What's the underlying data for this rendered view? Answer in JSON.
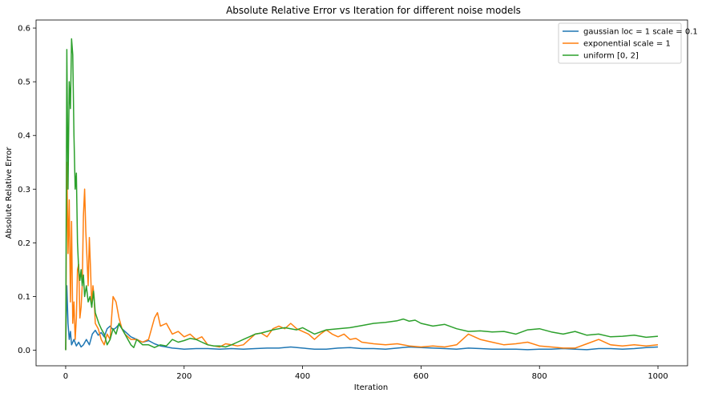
{
  "chart_data": {
    "type": "line",
    "title": "Absolute Relative Error vs Iteration for different noise models",
    "xlabel": "Iteration",
    "ylabel": "Absolute Relative Error",
    "xlim": [
      -50,
      1050
    ],
    "ylim": [
      -0.029,
      0.615
    ],
    "xticks": [
      0,
      200,
      400,
      600,
      800,
      1000
    ],
    "yticks": [
      0.0,
      0.1,
      0.2,
      0.3,
      0.4,
      0.5,
      0.6
    ],
    "ytick_labels": [
      "0.0",
      "0.1",
      "0.2",
      "0.3",
      "0.4",
      "0.5",
      "0.6"
    ],
    "grid": false,
    "legend_position": "top-right",
    "series": [
      {
        "name": "gaussian loc = 1 scale = 0.1",
        "color": "#1f77b4",
        "x": [
          0,
          2,
          4,
          6,
          8,
          10,
          14,
          18,
          22,
          26,
          30,
          35,
          40,
          45,
          50,
          55,
          60,
          65,
          70,
          75,
          80,
          85,
          90,
          95,
          100,
          105,
          110,
          120,
          130,
          140,
          150,
          160,
          170,
          180,
          190,
          200,
          220,
          240,
          260,
          280,
          300,
          320,
          340,
          360,
          380,
          400,
          420,
          440,
          460,
          480,
          500,
          520,
          540,
          560,
          580,
          600,
          620,
          640,
          660,
          680,
          700,
          720,
          740,
          760,
          780,
          800,
          820,
          840,
          860,
          880,
          900,
          920,
          940,
          960,
          980,
          1000
        ],
        "y": [
          0.0,
          0.12,
          0.05,
          0.02,
          0.035,
          0.01,
          0.02,
          0.008,
          0.015,
          0.006,
          0.01,
          0.02,
          0.01,
          0.03,
          0.037,
          0.028,
          0.033,
          0.025,
          0.04,
          0.045,
          0.038,
          0.042,
          0.048,
          0.04,
          0.035,
          0.03,
          0.025,
          0.02,
          0.015,
          0.018,
          0.012,
          0.008,
          0.006,
          0.004,
          0.003,
          0.002,
          0.003,
          0.003,
          0.002,
          0.003,
          0.002,
          0.003,
          0.004,
          0.004,
          0.006,
          0.004,
          0.002,
          0.002,
          0.004,
          0.005,
          0.003,
          0.003,
          0.002,
          0.004,
          0.006,
          0.005,
          0.004,
          0.003,
          0.002,
          0.004,
          0.003,
          0.002,
          0.002,
          0.002,
          0.001,
          0.002,
          0.002,
          0.003,
          0.002,
          0.001,
          0.003,
          0.003,
          0.002,
          0.003,
          0.005,
          0.006
        ]
      },
      {
        "name": "exponential scale = 1",
        "color": "#ff7f0e",
        "x": [
          0,
          2,
          4,
          6,
          8,
          10,
          12,
          14,
          16,
          18,
          20,
          22,
          24,
          26,
          28,
          30,
          32,
          34,
          36,
          38,
          40,
          42,
          44,
          46,
          48,
          50,
          55,
          60,
          65,
          70,
          75,
          80,
          85,
          90,
          95,
          100,
          110,
          120,
          130,
          140,
          150,
          155,
          160,
          170,
          180,
          190,
          200,
          210,
          220,
          230,
          240,
          250,
          260,
          270,
          280,
          290,
          300,
          310,
          320,
          330,
          340,
          350,
          360,
          370,
          380,
          390,
          400,
          410,
          420,
          430,
          440,
          450,
          460,
          470,
          480,
          490,
          500,
          520,
          540,
          560,
          580,
          600,
          620,
          640,
          660,
          680,
          700,
          720,
          740,
          760,
          780,
          800,
          820,
          840,
          860,
          880,
          900,
          920,
          940,
          960,
          980,
          1000
        ],
        "y": [
          0.0,
          0.35,
          0.18,
          0.28,
          0.09,
          0.24,
          0.05,
          0.09,
          0.02,
          0.06,
          0.15,
          0.16,
          0.06,
          0.08,
          0.12,
          0.25,
          0.3,
          0.22,
          0.17,
          0.12,
          0.21,
          0.15,
          0.08,
          0.12,
          0.1,
          0.05,
          0.04,
          0.02,
          0.01,
          0.03,
          0.02,
          0.1,
          0.09,
          0.06,
          0.04,
          0.03,
          0.02,
          0.02,
          0.015,
          0.02,
          0.06,
          0.07,
          0.045,
          0.05,
          0.03,
          0.035,
          0.025,
          0.03,
          0.02,
          0.025,
          0.01,
          0.008,
          0.006,
          0.012,
          0.01,
          0.008,
          0.01,
          0.02,
          0.03,
          0.032,
          0.025,
          0.04,
          0.045,
          0.04,
          0.05,
          0.04,
          0.035,
          0.03,
          0.02,
          0.03,
          0.038,
          0.03,
          0.025,
          0.03,
          0.02,
          0.022,
          0.015,
          0.012,
          0.01,
          0.012,
          0.008,
          0.006,
          0.008,
          0.006,
          0.01,
          0.03,
          0.02,
          0.015,
          0.01,
          0.012,
          0.015,
          0.008,
          0.006,
          0.004,
          0.004,
          0.012,
          0.02,
          0.01,
          0.008,
          0.01,
          0.008,
          0.01
        ]
      },
      {
        "name": "uniform [0, 2]",
        "color": "#2ca02c",
        "x": [
          0,
          2,
          4,
          6,
          8,
          10,
          12,
          14,
          16,
          18,
          20,
          22,
          24,
          26,
          28,
          30,
          32,
          35,
          38,
          41,
          44,
          47,
          50,
          53,
          56,
          60,
          65,
          70,
          75,
          80,
          85,
          90,
          95,
          100,
          105,
          110,
          115,
          120,
          130,
          140,
          150,
          160,
          170,
          180,
          190,
          200,
          210,
          220,
          230,
          240,
          250,
          260,
          270,
          280,
          290,
          300,
          310,
          320,
          330,
          340,
          350,
          360,
          370,
          380,
          390,
          400,
          420,
          440,
          460,
          480,
          500,
          520,
          540,
          560,
          570,
          580,
          590,
          600,
          620,
          640,
          660,
          680,
          700,
          720,
          740,
          760,
          780,
          800,
          820,
          840,
          860,
          880,
          900,
          920,
          940,
          960,
          980,
          1000
        ],
        "y": [
          0.0,
          0.56,
          0.3,
          0.5,
          0.45,
          0.58,
          0.55,
          0.4,
          0.3,
          0.33,
          0.2,
          0.15,
          0.13,
          0.15,
          0.12,
          0.14,
          0.1,
          0.12,
          0.09,
          0.1,
          0.08,
          0.11,
          0.07,
          0.06,
          0.05,
          0.04,
          0.03,
          0.01,
          0.02,
          0.04,
          0.03,
          0.05,
          0.04,
          0.03,
          0.02,
          0.01,
          0.005,
          0.02,
          0.01,
          0.01,
          0.005,
          0.01,
          0.008,
          0.02,
          0.015,
          0.018,
          0.022,
          0.02,
          0.015,
          0.01,
          0.008,
          0.008,
          0.006,
          0.01,
          0.015,
          0.02,
          0.025,
          0.03,
          0.032,
          0.035,
          0.038,
          0.04,
          0.042,
          0.04,
          0.038,
          0.042,
          0.03,
          0.038,
          0.04,
          0.042,
          0.046,
          0.05,
          0.052,
          0.055,
          0.058,
          0.054,
          0.056,
          0.05,
          0.045,
          0.048,
          0.04,
          0.035,
          0.036,
          0.034,
          0.035,
          0.03,
          0.038,
          0.04,
          0.034,
          0.03,
          0.035,
          0.028,
          0.03,
          0.025,
          0.026,
          0.028,
          0.024,
          0.026
        ]
      }
    ]
  }
}
